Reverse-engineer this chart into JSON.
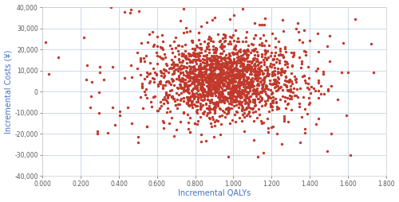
{
  "title": "",
  "xlabel": "Incremental QALYs",
  "ylabel": "Incremental Costs (¥)",
  "xlim": [
    0.0,
    1.8
  ],
  "ylim": [
    -40000,
    40000
  ],
  "xticks": [
    0.0,
    0.2,
    0.4,
    0.6,
    0.8,
    1.0,
    1.2,
    1.4,
    1.6,
    1.8
  ],
  "yticks": [
    -40000,
    -30000,
    -20000,
    -10000,
    0,
    10000,
    20000,
    30000,
    40000
  ],
  "dot_color": "#c0392b",
  "dot_size": 6,
  "background_color": "#ffffff",
  "grid_color": "#b8cce4",
  "axis_label_color": "#4472c4",
  "tick_label_color": "#595959",
  "n_points": 2000,
  "x_center": 0.95,
  "x_std": 0.17,
  "y_center": 6000,
  "y_std": 8500,
  "x_out_std": 0.28,
  "y_out_std": 14000,
  "seed": 77
}
